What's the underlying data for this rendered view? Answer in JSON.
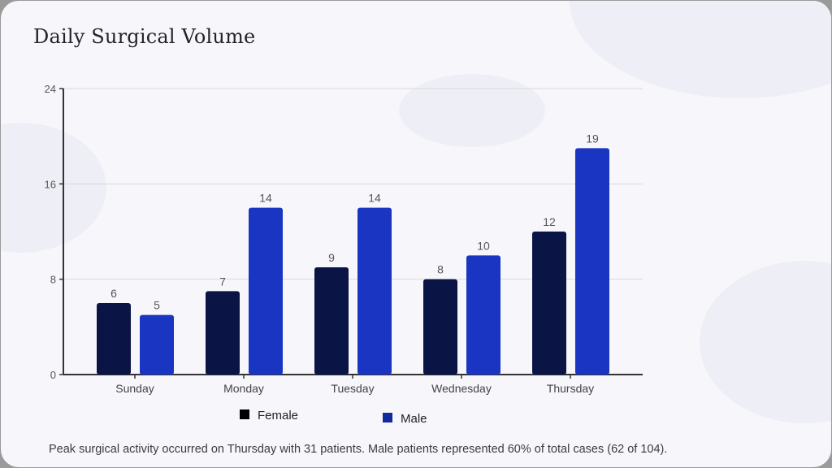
{
  "title": "Daily Surgical Volume",
  "footer": "Peak surgical activity occurred on Thursday with 31 patients. Male patients represented 60% of total cases (62 of 104).",
  "chart_data": {
    "type": "bar",
    "title": "Daily Surgical Volume",
    "categories": [
      "Sunday",
      "Monday",
      "Tuesday",
      "Wednesday",
      "Thursday"
    ],
    "series": [
      {
        "name": "Female",
        "values": [
          6,
          7,
          9,
          8,
          12
        ],
        "color": "#0a1545"
      },
      {
        "name": "Male",
        "values": [
          5,
          14,
          14,
          10,
          19
        ],
        "color": "#1a35c2"
      }
    ],
    "yticks": [
      0,
      8,
      16,
      24
    ],
    "ylim": [
      0,
      24
    ],
    "grid": true,
    "data_labels": true,
    "legend": "bottom"
  }
}
